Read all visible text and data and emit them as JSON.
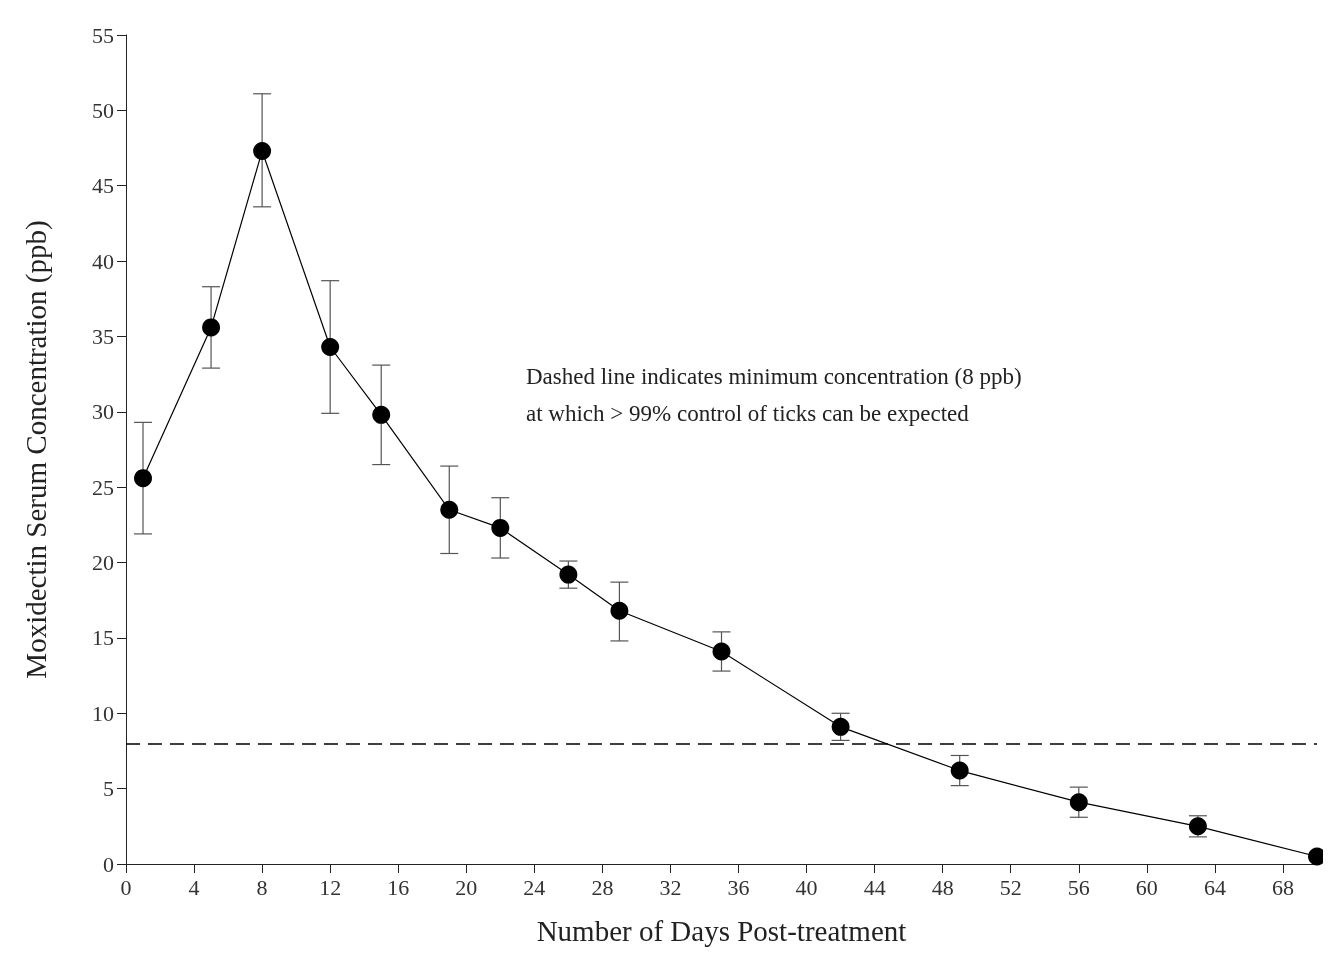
{
  "chart_data": {
    "type": "line",
    "xlabel": "Number of Days Post-treatment",
    "ylabel": "Moxidectin Serum Concentration (ppb)",
    "x": [
      1,
      5,
      8,
      12,
      15,
      19,
      22,
      26,
      29,
      35,
      42,
      49,
      56,
      63,
      70
    ],
    "series": [
      {
        "color": "#000000",
        "values": [
          25.6,
          35.6,
          47.3,
          34.3,
          29.8,
          23.5,
          22.3,
          19.2,
          16.8,
          14.1,
          9.1,
          6.2,
          4.1,
          2.5,
          0.5
        ],
        "errors": [
          [
            21.9,
            29.3
          ],
          [
            32.9,
            38.3
          ],
          [
            43.6,
            51.1
          ],
          [
            29.9,
            38.7
          ],
          [
            26.5,
            33.1
          ],
          [
            20.6,
            26.4
          ],
          [
            20.3,
            24.3
          ],
          [
            18.3,
            20.1
          ],
          [
            14.8,
            18.7
          ],
          [
            12.8,
            15.4
          ],
          [
            8.2,
            10.0
          ],
          [
            5.2,
            7.2
          ],
          [
            3.1,
            5.1
          ],
          [
            1.8,
            3.2
          ],
          null
        ]
      }
    ],
    "xlim": [
      0,
      70
    ],
    "xticks": [
      0,
      4,
      8,
      12,
      16,
      20,
      24,
      28,
      32,
      36,
      40,
      44,
      48,
      52,
      56,
      60,
      64,
      68
    ],
    "ylim": [
      0,
      55
    ],
    "yticks": [
      0,
      5,
      10,
      15,
      20,
      25,
      30,
      35,
      40,
      45,
      50,
      55
    ],
    "ref_lines": [
      {
        "axis": "y",
        "value": 8,
        "line_style": "dashed",
        "color": "#000000"
      }
    ],
    "annotations": [
      "Dashed line indicates minimum concentration (8 ppb)\nat which > 99% control of ticks can be expected"
    ],
    "grid": false,
    "marker": "circle",
    "line_style": "solid"
  }
}
